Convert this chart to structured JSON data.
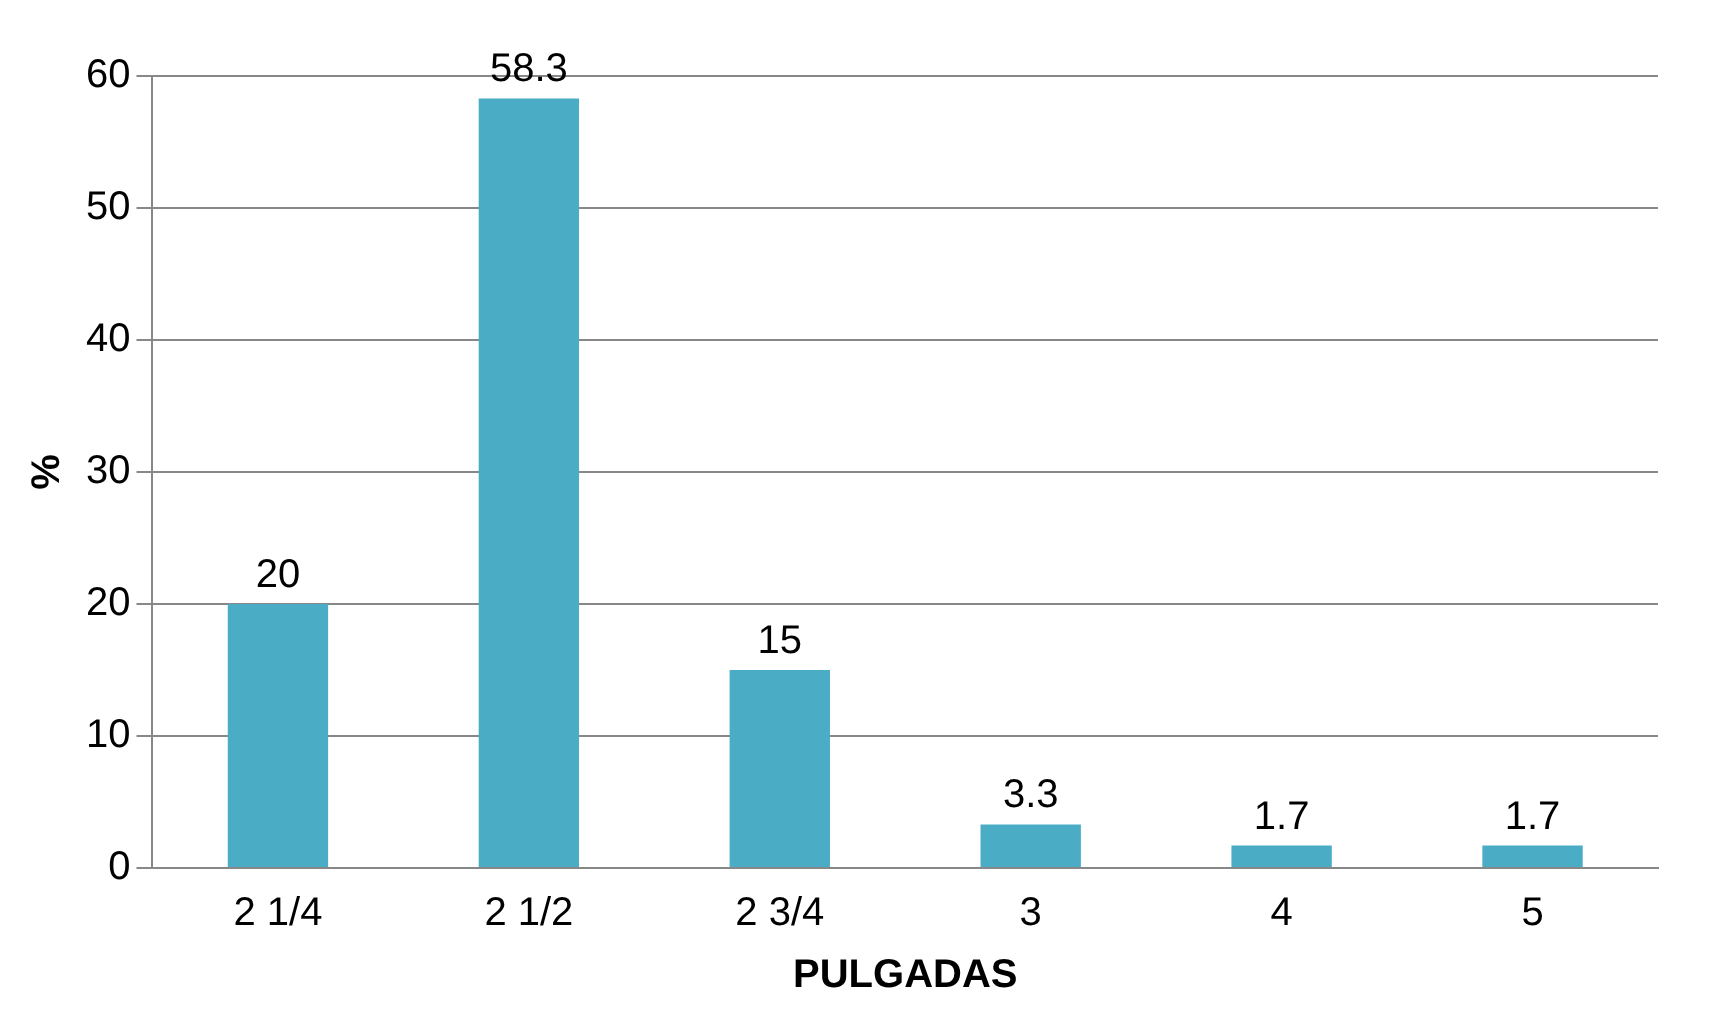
{
  "chart_data": {
    "type": "bar",
    "xlabel": "PULGADAS",
    "ylabel": "%",
    "categories": [
      "2 1/4",
      "2 1/2",
      "2 3/4",
      "3",
      "4",
      "5"
    ],
    "values": [
      20,
      58.3,
      15,
      3.3,
      1.7,
      1.7
    ],
    "color": "#4bacc6",
    "ylim": [
      0,
      60
    ],
    "yticks": [
      0,
      10,
      20,
      30,
      40,
      50,
      60
    ],
    "grid": "y",
    "data_labels": true
  }
}
